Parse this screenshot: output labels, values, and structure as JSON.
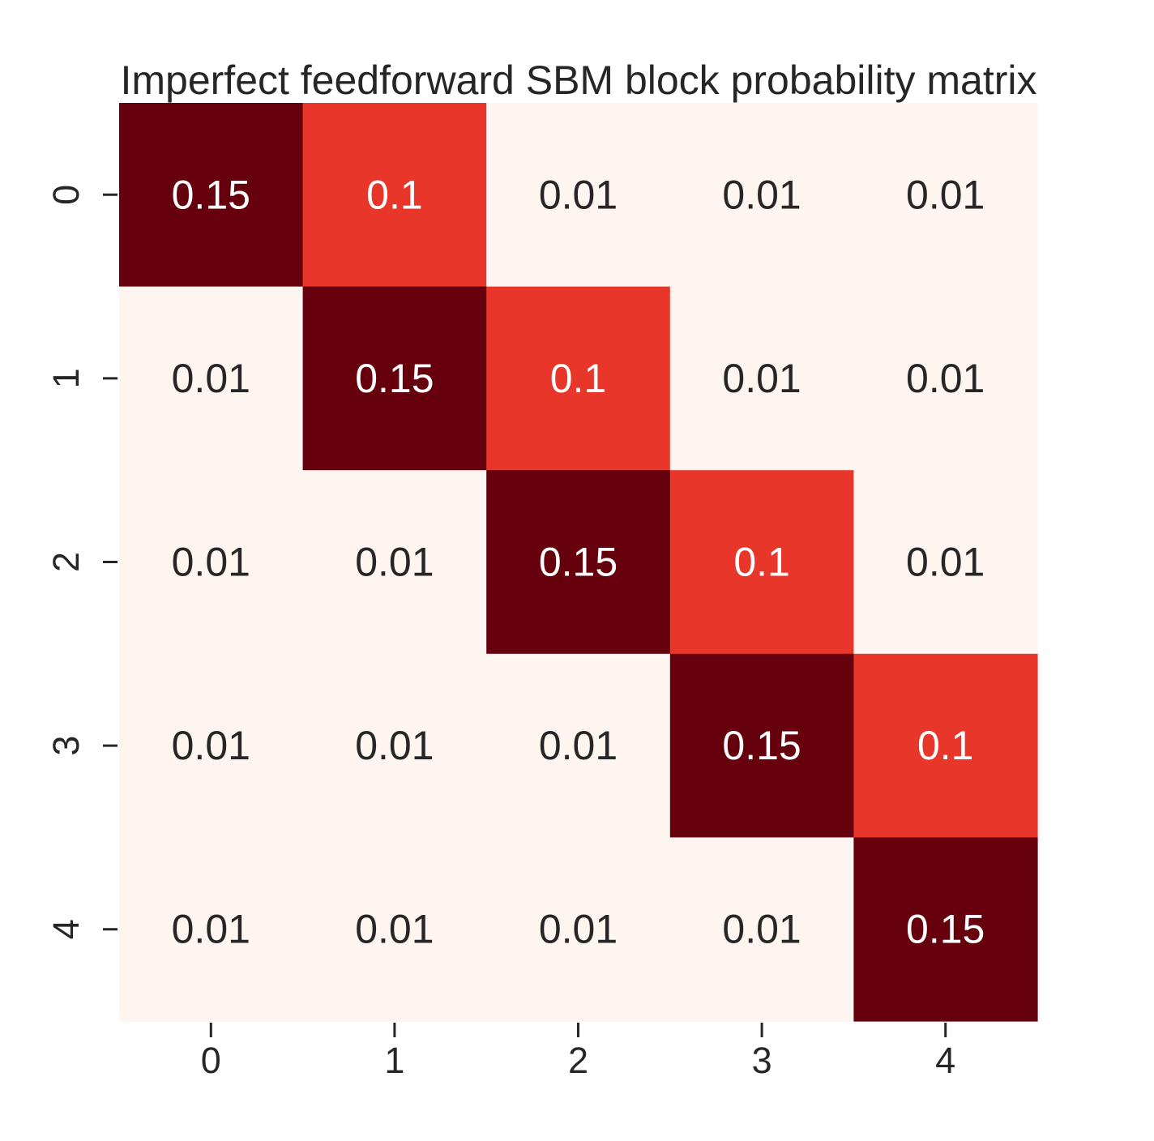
{
  "chart_data": {
    "type": "heatmap",
    "title": "Imperfect feedforward SBM block probability matrix",
    "xlabel": "",
    "ylabel": "",
    "x_categories": [
      "0",
      "1",
      "2",
      "3",
      "4"
    ],
    "y_categories": [
      "0",
      "1",
      "2",
      "3",
      "4"
    ],
    "values": [
      [
        0.15,
        0.1,
        0.01,
        0.01,
        0.01
      ],
      [
        0.01,
        0.15,
        0.1,
        0.01,
        0.01
      ],
      [
        0.01,
        0.01,
        0.15,
        0.1,
        0.01
      ],
      [
        0.01,
        0.01,
        0.01,
        0.15,
        0.1
      ],
      [
        0.01,
        0.01,
        0.01,
        0.01,
        0.15
      ]
    ],
    "value_labels": [
      [
        "0.15",
        "0.1",
        "0.01",
        "0.01",
        "0.01"
      ],
      [
        "0.01",
        "0.15",
        "0.1",
        "0.01",
        "0.01"
      ],
      [
        "0.01",
        "0.01",
        "0.15",
        "0.1",
        "0.01"
      ],
      [
        "0.01",
        "0.01",
        "0.01",
        "0.15",
        "0.1"
      ],
      [
        "0.01",
        "0.01",
        "0.01",
        "0.01",
        "0.15"
      ]
    ],
    "colormap": "Reds",
    "color_range": [
      0.01,
      0.15
    ],
    "colorbar": false,
    "grid": false
  },
  "colors": {
    "low": "#fff5f0",
    "mid": "#e8362b",
    "high": "#67000d",
    "text_dark": "#262626",
    "text_light": "#ffffff"
  }
}
